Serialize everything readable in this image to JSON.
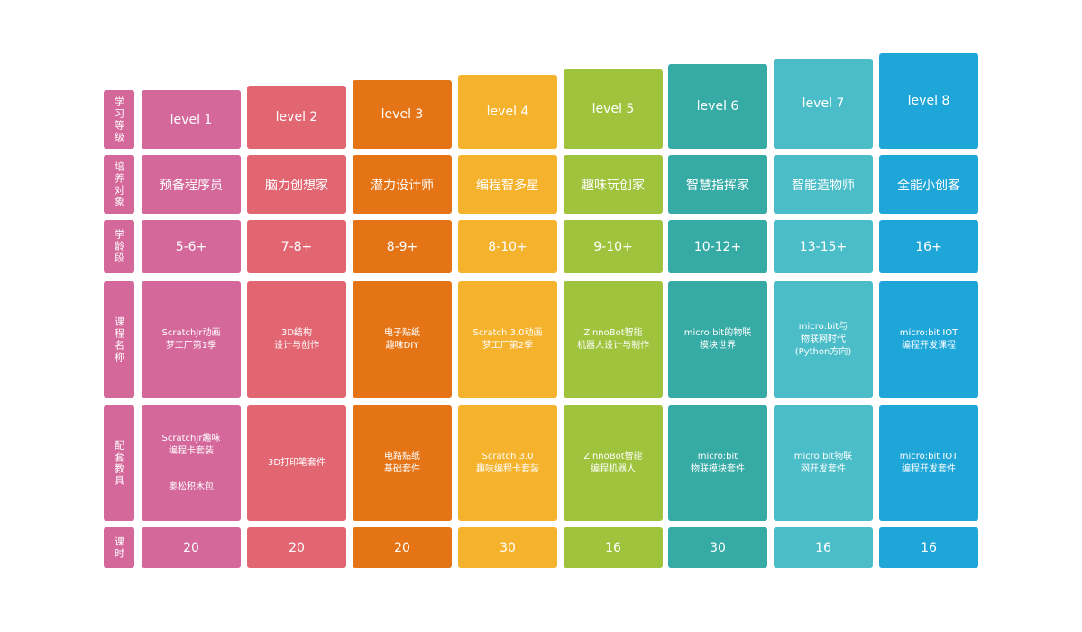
{
  "row_headers": [
    "学习等级",
    "培养对象",
    "学龄段",
    "课程名称",
    "配套教具",
    "课时"
  ],
  "levels": [
    {
      "level": "level 1",
      "title": "预备程序员",
      "age": "5-6+",
      "course": "ScratchJr动画\n梦工厂第1季",
      "kit": "ScratchJr趣味\n编程卡套装",
      "kit_extra": "奥松积木包",
      "hours": "20",
      "color": "#d4689a"
    },
    {
      "level": "level 2",
      "title": "脑力创想家",
      "age": "7-8+",
      "course": "3D结构\n设计与创作",
      "kit": "3D打印笔套件",
      "kit_extra": "",
      "hours": "20",
      "color": "#e26572"
    },
    {
      "level": "level 3",
      "title": "潜力设计师",
      "age": "8-9+",
      "course": "电子贴纸\n趣味DIY",
      "kit": "电路贴纸\n基础套件",
      "kit_extra": "",
      "hours": "20",
      "color": "#e47416"
    },
    {
      "level": "level 4",
      "title": "编程智多星",
      "age": "8-10+",
      "course": "Scratch 3.0动画\n梦工厂第2季",
      "kit": "Scratch 3.0\n趣味编程卡套装",
      "kit_extra": "",
      "hours": "30",
      "color": "#f5b22c"
    },
    {
      "level": "level 5",
      "title": "趣味玩创家",
      "age": "9-10+",
      "course": "ZinnoBot智能\n机器人设计与制作",
      "kit": "ZinnoBot智能\n编程机器人",
      "kit_extra": "",
      "hours": "16",
      "color": "#9fc33d"
    },
    {
      "level": "level 6",
      "title": "智慧指挥家",
      "age": "10-12+",
      "course": "micro:bit的物联\n模块世界",
      "kit": "micro:bit\n物联模块套件",
      "kit_extra": "",
      "hours": "30",
      "color": "#36aba5"
    },
    {
      "level": "level 7",
      "title": "智能造物师",
      "age": "13-15+",
      "course": "micro:bit与\n物联网时代\n(Python方向)",
      "kit": "micro:bit物联\n网开发套件",
      "kit_extra": "",
      "hours": "16",
      "color": "#4abdc8"
    },
    {
      "level": "level 8",
      "title": "全能小创客",
      "age": "16+",
      "course": "micro:bit IOT\n编程开发课程",
      "kit": "micro:bit IOT\n编程开发套件",
      "kit_extra": "",
      "hours": "16",
      "color": "#1fa6d9"
    }
  ],
  "header_color": "#d4689a"
}
